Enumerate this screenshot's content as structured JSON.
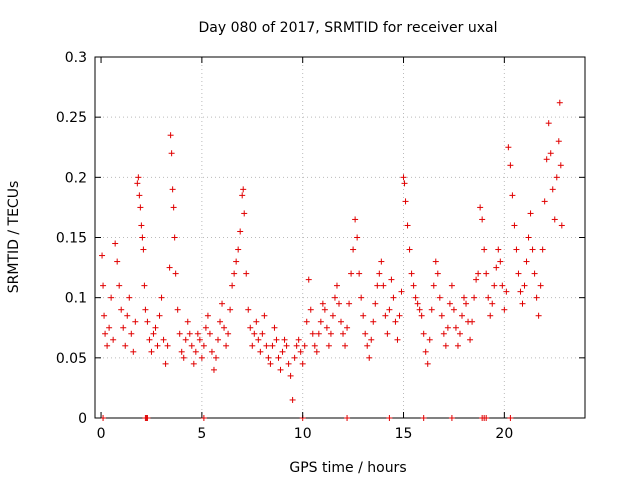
{
  "chart_data": {
    "type": "scatter",
    "title": "Day 080 of 2017, SRMTID for receiver uxal",
    "xlabel": "GPS time / hours",
    "ylabel": "SRMTID / TECUs",
    "xlim": [
      -0.3,
      24
    ],
    "ylim": [
      0,
      0.3
    ],
    "grid": true,
    "marker": "+",
    "color": "#e00000",
    "x_ticks": [
      0,
      5,
      10,
      15,
      20
    ],
    "x_tick_labels": [
      "0",
      "5",
      "10",
      "15",
      "20"
    ],
    "y_ticks": [
      0,
      0.05,
      0.1,
      0.15,
      0.2,
      0.25,
      0.3
    ],
    "y_tick_labels": [
      "0",
      "0.05",
      "0.1",
      "0.15",
      "0.2",
      "0.25",
      "0.3"
    ],
    "series": [
      {
        "name": "SRMTID",
        "points": [
          [
            0.05,
            0.135
          ],
          [
            0.1,
            0.11
          ],
          [
            0.15,
            0.085
          ],
          [
            0.2,
            0.07
          ],
          [
            0.3,
            0.06
          ],
          [
            0.4,
            0.075
          ],
          [
            0.5,
            0.1
          ],
          [
            0.6,
            0.065
          ],
          [
            0.7,
            0.145
          ],
          [
            0.8,
            0.13
          ],
          [
            0.9,
            0.11
          ],
          [
            1.0,
            0.09
          ],
          [
            1.1,
            0.075
          ],
          [
            1.2,
            0.06
          ],
          [
            1.3,
            0.085
          ],
          [
            1.4,
            0.1
          ],
          [
            1.5,
            0.07
          ],
          [
            1.6,
            0.055
          ],
          [
            1.7,
            0.08
          ],
          [
            1.8,
            0.195
          ],
          [
            1.85,
            0.2
          ],
          [
            1.9,
            0.185
          ],
          [
            1.95,
            0.175
          ],
          [
            2.0,
            0.16
          ],
          [
            2.05,
            0.15
          ],
          [
            2.1,
            0.14
          ],
          [
            2.15,
            0.11
          ],
          [
            2.2,
            0.09
          ],
          [
            2.3,
            0.08
          ],
          [
            2.4,
            0.065
          ],
          [
            2.5,
            0.055
          ],
          [
            2.6,
            0.07
          ],
          [
            2.7,
            0.075
          ],
          [
            2.8,
            0.06
          ],
          [
            2.9,
            0.085
          ],
          [
            3.0,
            0.1
          ],
          [
            3.1,
            0.065
          ],
          [
            3.2,
            0.045
          ],
          [
            3.3,
            0.06
          ],
          [
            3.4,
            0.125
          ],
          [
            3.45,
            0.235
          ],
          [
            3.5,
            0.22
          ],
          [
            3.55,
            0.19
          ],
          [
            3.6,
            0.175
          ],
          [
            3.65,
            0.15
          ],
          [
            3.7,
            0.12
          ],
          [
            3.8,
            0.09
          ],
          [
            3.9,
            0.07
          ],
          [
            4.0,
            0.055
          ],
          [
            4.1,
            0.05
          ],
          [
            4.2,
            0.065
          ],
          [
            4.3,
            0.08
          ],
          [
            4.4,
            0.07
          ],
          [
            4.5,
            0.06
          ],
          [
            4.6,
            0.045
          ],
          [
            4.7,
            0.055
          ],
          [
            4.8,
            0.07
          ],
          [
            4.9,
            0.065
          ],
          [
            5.0,
            0.05
          ],
          [
            5.1,
            0.06
          ],
          [
            5.2,
            0.075
          ],
          [
            5.3,
            0.085
          ],
          [
            5.4,
            0.07
          ],
          [
            5.5,
            0.055
          ],
          [
            5.6,
            0.04
          ],
          [
            5.7,
            0.05
          ],
          [
            5.8,
            0.065
          ],
          [
            5.9,
            0.08
          ],
          [
            6.0,
            0.095
          ],
          [
            6.1,
            0.075
          ],
          [
            6.2,
            0.06
          ],
          [
            6.3,
            0.07
          ],
          [
            6.4,
            0.09
          ],
          [
            6.5,
            0.11
          ],
          [
            6.6,
            0.12
          ],
          [
            6.7,
            0.13
          ],
          [
            6.8,
            0.14
          ],
          [
            6.9,
            0.155
          ],
          [
            7.0,
            0.185
          ],
          [
            7.05,
            0.19
          ],
          [
            7.1,
            0.17
          ],
          [
            7.2,
            0.12
          ],
          [
            7.3,
            0.09
          ],
          [
            7.4,
            0.075
          ],
          [
            7.5,
            0.06
          ],
          [
            7.6,
            0.07
          ],
          [
            7.7,
            0.08
          ],
          [
            7.8,
            0.065
          ],
          [
            7.9,
            0.055
          ],
          [
            8.0,
            0.07
          ],
          [
            8.1,
            0.085
          ],
          [
            8.2,
            0.06
          ],
          [
            8.3,
            0.05
          ],
          [
            8.4,
            0.045
          ],
          [
            8.5,
            0.06
          ],
          [
            8.6,
            0.075
          ],
          [
            8.7,
            0.065
          ],
          [
            8.8,
            0.05
          ],
          [
            8.9,
            0.04
          ],
          [
            9.0,
            0.055
          ],
          [
            9.1,
            0.065
          ],
          [
            9.2,
            0.06
          ],
          [
            9.3,
            0.045
          ],
          [
            9.4,
            0.035
          ],
          [
            9.5,
            0.015
          ],
          [
            9.6,
            0.05
          ],
          [
            9.7,
            0.06
          ],
          [
            9.8,
            0.065
          ],
          [
            9.9,
            0.055
          ],
          [
            10.0,
            0.045
          ],
          [
            10.1,
            0.06
          ],
          [
            10.2,
            0.08
          ],
          [
            10.3,
            0.115
          ],
          [
            10.4,
            0.09
          ],
          [
            10.5,
            0.07
          ],
          [
            10.6,
            0.06
          ],
          [
            10.7,
            0.055
          ],
          [
            10.8,
            0.07
          ],
          [
            10.9,
            0.08
          ],
          [
            11.0,
            0.095
          ],
          [
            11.1,
            0.09
          ],
          [
            11.2,
            0.075
          ],
          [
            11.3,
            0.06
          ],
          [
            11.4,
            0.07
          ],
          [
            11.5,
            0.085
          ],
          [
            11.6,
            0.1
          ],
          [
            11.7,
            0.11
          ],
          [
            11.8,
            0.095
          ],
          [
            11.9,
            0.08
          ],
          [
            12.0,
            0.07
          ],
          [
            12.1,
            0.06
          ],
          [
            12.2,
            0.075
          ],
          [
            12.3,
            0.095
          ],
          [
            12.4,
            0.12
          ],
          [
            12.5,
            0.14
          ],
          [
            12.6,
            0.165
          ],
          [
            12.7,
            0.15
          ],
          [
            12.8,
            0.12
          ],
          [
            12.9,
            0.1
          ],
          [
            13.0,
            0.085
          ],
          [
            13.1,
            0.07
          ],
          [
            13.2,
            0.06
          ],
          [
            13.3,
            0.05
          ],
          [
            13.4,
            0.065
          ],
          [
            13.5,
            0.08
          ],
          [
            13.6,
            0.095
          ],
          [
            13.7,
            0.11
          ],
          [
            13.8,
            0.12
          ],
          [
            13.9,
            0.13
          ],
          [
            14.0,
            0.11
          ],
          [
            14.1,
            0.085
          ],
          [
            14.2,
            0.07
          ],
          [
            14.3,
            0.09
          ],
          [
            14.4,
            0.115
          ],
          [
            14.5,
            0.1
          ],
          [
            14.6,
            0.08
          ],
          [
            14.7,
            0.065
          ],
          [
            14.8,
            0.085
          ],
          [
            14.9,
            0.105
          ],
          [
            15.0,
            0.2
          ],
          [
            15.05,
            0.195
          ],
          [
            15.1,
            0.18
          ],
          [
            15.2,
            0.16
          ],
          [
            15.3,
            0.14
          ],
          [
            15.4,
            0.12
          ],
          [
            15.5,
            0.11
          ],
          [
            15.6,
            0.1
          ],
          [
            15.7,
            0.095
          ],
          [
            15.8,
            0.09
          ],
          [
            15.9,
            0.085
          ],
          [
            16.0,
            0.07
          ],
          [
            16.1,
            0.055
          ],
          [
            16.2,
            0.045
          ],
          [
            16.3,
            0.065
          ],
          [
            16.4,
            0.09
          ],
          [
            16.5,
            0.11
          ],
          [
            16.6,
            0.13
          ],
          [
            16.7,
            0.12
          ],
          [
            16.8,
            0.1
          ],
          [
            16.9,
            0.085
          ],
          [
            17.0,
            0.07
          ],
          [
            17.1,
            0.06
          ],
          [
            17.2,
            0.075
          ],
          [
            17.3,
            0.095
          ],
          [
            17.4,
            0.11
          ],
          [
            17.5,
            0.09
          ],
          [
            17.6,
            0.075
          ],
          [
            17.7,
            0.06
          ],
          [
            17.8,
            0.07
          ],
          [
            17.9,
            0.085
          ],
          [
            18.0,
            0.1
          ],
          [
            18.1,
            0.095
          ],
          [
            18.2,
            0.08
          ],
          [
            18.3,
            0.065
          ],
          [
            18.4,
            0.08
          ],
          [
            18.5,
            0.1
          ],
          [
            18.6,
            0.115
          ],
          [
            18.7,
            0.12
          ],
          [
            18.8,
            0.175
          ],
          [
            18.9,
            0.165
          ],
          [
            19.0,
            0.14
          ],
          [
            19.1,
            0.12
          ],
          [
            19.2,
            0.1
          ],
          [
            19.3,
            0.085
          ],
          [
            19.4,
            0.095
          ],
          [
            19.5,
            0.11
          ],
          [
            19.6,
            0.125
          ],
          [
            19.7,
            0.14
          ],
          [
            19.8,
            0.13
          ],
          [
            19.9,
            0.11
          ],
          [
            20.0,
            0.09
          ],
          [
            20.1,
            0.105
          ],
          [
            20.2,
            0.225
          ],
          [
            20.3,
            0.21
          ],
          [
            20.4,
            0.185
          ],
          [
            20.5,
            0.16
          ],
          [
            20.6,
            0.14
          ],
          [
            20.7,
            0.12
          ],
          [
            20.8,
            0.105
          ],
          [
            20.9,
            0.095
          ],
          [
            21.0,
            0.11
          ],
          [
            21.1,
            0.13
          ],
          [
            21.2,
            0.15
          ],
          [
            21.3,
            0.17
          ],
          [
            21.4,
            0.14
          ],
          [
            21.5,
            0.12
          ],
          [
            21.6,
            0.1
          ],
          [
            21.7,
            0.085
          ],
          [
            21.8,
            0.11
          ],
          [
            21.9,
            0.14
          ],
          [
            22.0,
            0.18
          ],
          [
            22.1,
            0.215
          ],
          [
            22.2,
            0.245
          ],
          [
            22.3,
            0.22
          ],
          [
            22.4,
            0.19
          ],
          [
            22.5,
            0.165
          ],
          [
            22.6,
            0.2
          ],
          [
            22.7,
            0.23
          ],
          [
            22.75,
            0.262
          ],
          [
            22.8,
            0.21
          ],
          [
            22.85,
            0.16
          ]
        ],
        "zero_points": [
          0.1,
          2.2,
          2.25,
          2.3,
          5.1,
          10.0,
          12.2,
          14.3,
          16.0,
          17.4,
          18.9,
          19.0,
          19.1,
          20.3
        ]
      }
    ]
  }
}
